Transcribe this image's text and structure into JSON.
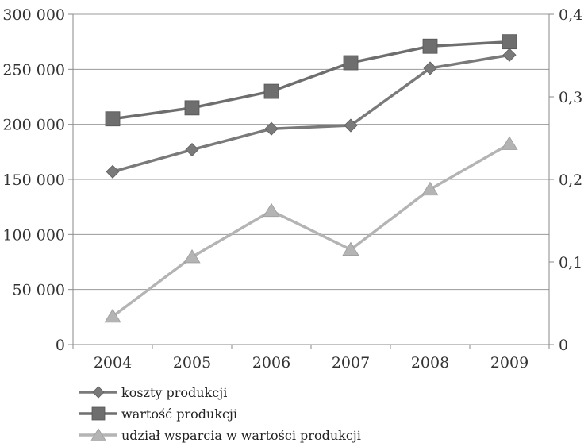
{
  "chart_data": {
    "type": "line",
    "categories": [
      "2004",
      "2005",
      "2006",
      "2007",
      "2008",
      "2009"
    ],
    "y_left": {
      "range": [
        0,
        300000
      ],
      "ticks": [
        0,
        50000,
        100000,
        150000,
        200000,
        250000,
        300000
      ],
      "tick_labels": [
        "0",
        "50 000",
        "100 000",
        "150 000",
        "200 000",
        "250 000",
        "300 000"
      ]
    },
    "y_right": {
      "range": [
        0,
        0.4
      ],
      "ticks": [
        0,
        0.1,
        0.2,
        0.3,
        0.4
      ],
      "tick_labels": [
        "0",
        "0,1",
        "0,2",
        "0,3",
        "0,4"
      ]
    },
    "grid": true,
    "legend_position": "bottom-left",
    "series": [
      {
        "name": "koszty produkcji",
        "axis": "left",
        "marker": "diamond",
        "color": "#7a7a7a",
        "values": [
          157000,
          177000,
          196000,
          199000,
          251000,
          263000
        ]
      },
      {
        "name": "wartość produkcji",
        "axis": "left",
        "marker": "square",
        "color": "#6e6e6e",
        "values": [
          205000,
          215000,
          230000,
          256000,
          271000,
          275000
        ]
      },
      {
        "name": "udział wsparcia w wartości produkcji",
        "axis": "right",
        "marker": "triangle",
        "color": "#b4b4b4",
        "values": [
          0.034,
          0.106,
          0.162,
          0.115,
          0.188,
          0.243
        ]
      }
    ]
  }
}
